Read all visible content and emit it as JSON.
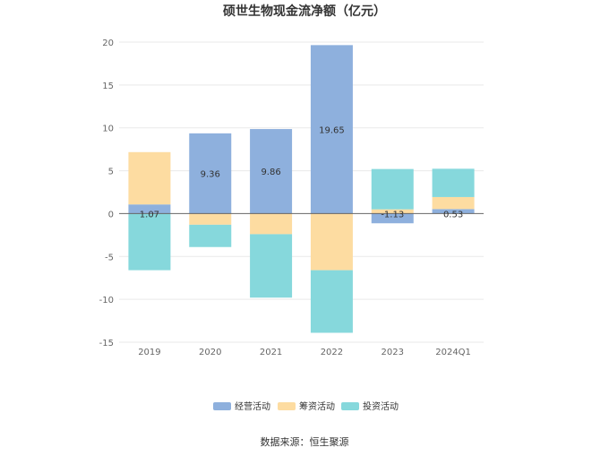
{
  "chart_data": {
    "type": "bar",
    "stacked": true,
    "title": "硕世生物现金流净额（亿元）",
    "categories": [
      "2019",
      "2020",
      "2021",
      "2022",
      "2023",
      "2024Q1"
    ],
    "ylim": [
      -15,
      20
    ],
    "yticks": [
      20,
      15,
      10,
      5,
      0,
      -5,
      -10,
      -15
    ],
    "grid": true,
    "legend_position": "bottom",
    "series": [
      {
        "name": "经营活动",
        "color": "#8eb0dd",
        "values": [
          1.07,
          9.36,
          9.86,
          19.65,
          -1.13,
          0.53
        ]
      },
      {
        "name": "筹资活动",
        "color": "#fddca1",
        "values": [
          6.1,
          -1.3,
          -2.4,
          -6.6,
          0.5,
          1.4
        ]
      },
      {
        "name": "投资活动",
        "color": "#86d8dc",
        "values": [
          -6.6,
          -2.6,
          -7.4,
          -7.3,
          4.7,
          3.3
        ]
      }
    ],
    "data_labels": [
      "1.07",
      "9.36",
      "9.86",
      "19.65",
      "-1.13",
      "0.53"
    ],
    "source": "数据来源：恒生聚源"
  }
}
